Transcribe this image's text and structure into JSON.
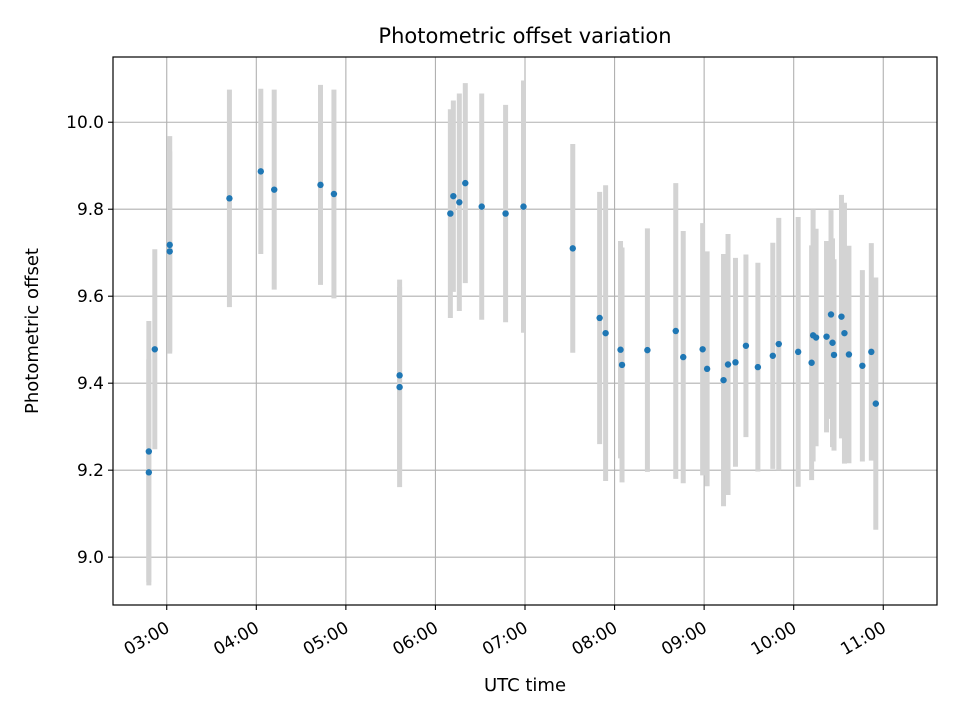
{
  "chart_data": {
    "type": "scatter",
    "title": "Photometric offset variation",
    "xlabel": "UTC time",
    "ylabel": "Photometric offset",
    "xlim": [
      "02:24",
      "11:36"
    ],
    "ylim": [
      8.89,
      10.15
    ],
    "grid": true,
    "x_ticks": [
      "03:00",
      "04:00",
      "05:00",
      "06:00",
      "07:00",
      "08:00",
      "09:00",
      "10:00",
      "11:00"
    ],
    "y_ticks": [
      "9.0",
      "9.2",
      "9.4",
      "9.6",
      "9.8",
      "10.0"
    ],
    "point_color": "#1f77b4",
    "errorbar_color": "#d3d3d3",
    "series": [
      {
        "x": [
          "02:48",
          "02:48",
          "02:52",
          "03:02",
          "03:02",
          "03:42",
          "04:03",
          "04:12",
          "04:43",
          "04:52",
          "05:36",
          "05:36",
          "06:10",
          "06:12",
          "06:16",
          "06:20",
          "06:31",
          "06:47",
          "06:59",
          "07:32",
          "07:50",
          "07:54",
          "08:04",
          "08:05",
          "08:22",
          "08:41",
          "08:46",
          "08:59",
          "09:02",
          "09:13",
          "09:16",
          "09:21",
          "09:28",
          "09:36",
          "09:46",
          "09:50",
          "10:03",
          "10:12",
          "10:13",
          "10:15",
          "10:22",
          "10:25",
          "10:26",
          "10:27",
          "10:32",
          "10:34",
          "10:37",
          "10:46",
          "10:52",
          "10:55"
        ],
        "y": [
          9.195,
          9.243,
          9.478,
          9.718,
          9.703,
          9.825,
          9.887,
          9.845,
          9.856,
          9.835,
          9.418,
          9.391,
          9.79,
          9.83,
          9.816,
          9.86,
          9.806,
          9.79,
          9.806,
          9.71,
          9.55,
          9.515,
          9.477,
          9.442,
          9.476,
          9.52,
          9.46,
          9.478,
          9.433,
          9.407,
          9.443,
          9.448,
          9.486,
          9.437,
          9.463,
          9.49,
          9.472,
          9.447,
          9.51,
          9.505,
          9.507,
          9.558,
          9.493,
          9.465,
          9.553,
          9.515,
          9.466,
          9.44,
          9.472,
          9.353
        ],
        "err": [
          0.26,
          0.3,
          0.23,
          0.25,
          0.23,
          0.25,
          0.19,
          0.23,
          0.23,
          0.24,
          0.22,
          0.23,
          0.24,
          0.22,
          0.25,
          0.23,
          0.26,
          0.25,
          0.29,
          0.24,
          0.29,
          0.34,
          0.25,
          0.27,
          0.28,
          0.34,
          0.29,
          0.29,
          0.27,
          0.29,
          0.3,
          0.24,
          0.21,
          0.24,
          0.26,
          0.29,
          0.31,
          0.27,
          0.29,
          0.25,
          0.22,
          0.24,
          0.24,
          0.22,
          0.28,
          0.3,
          0.25,
          0.22,
          0.25,
          0.29
        ]
      }
    ]
  }
}
